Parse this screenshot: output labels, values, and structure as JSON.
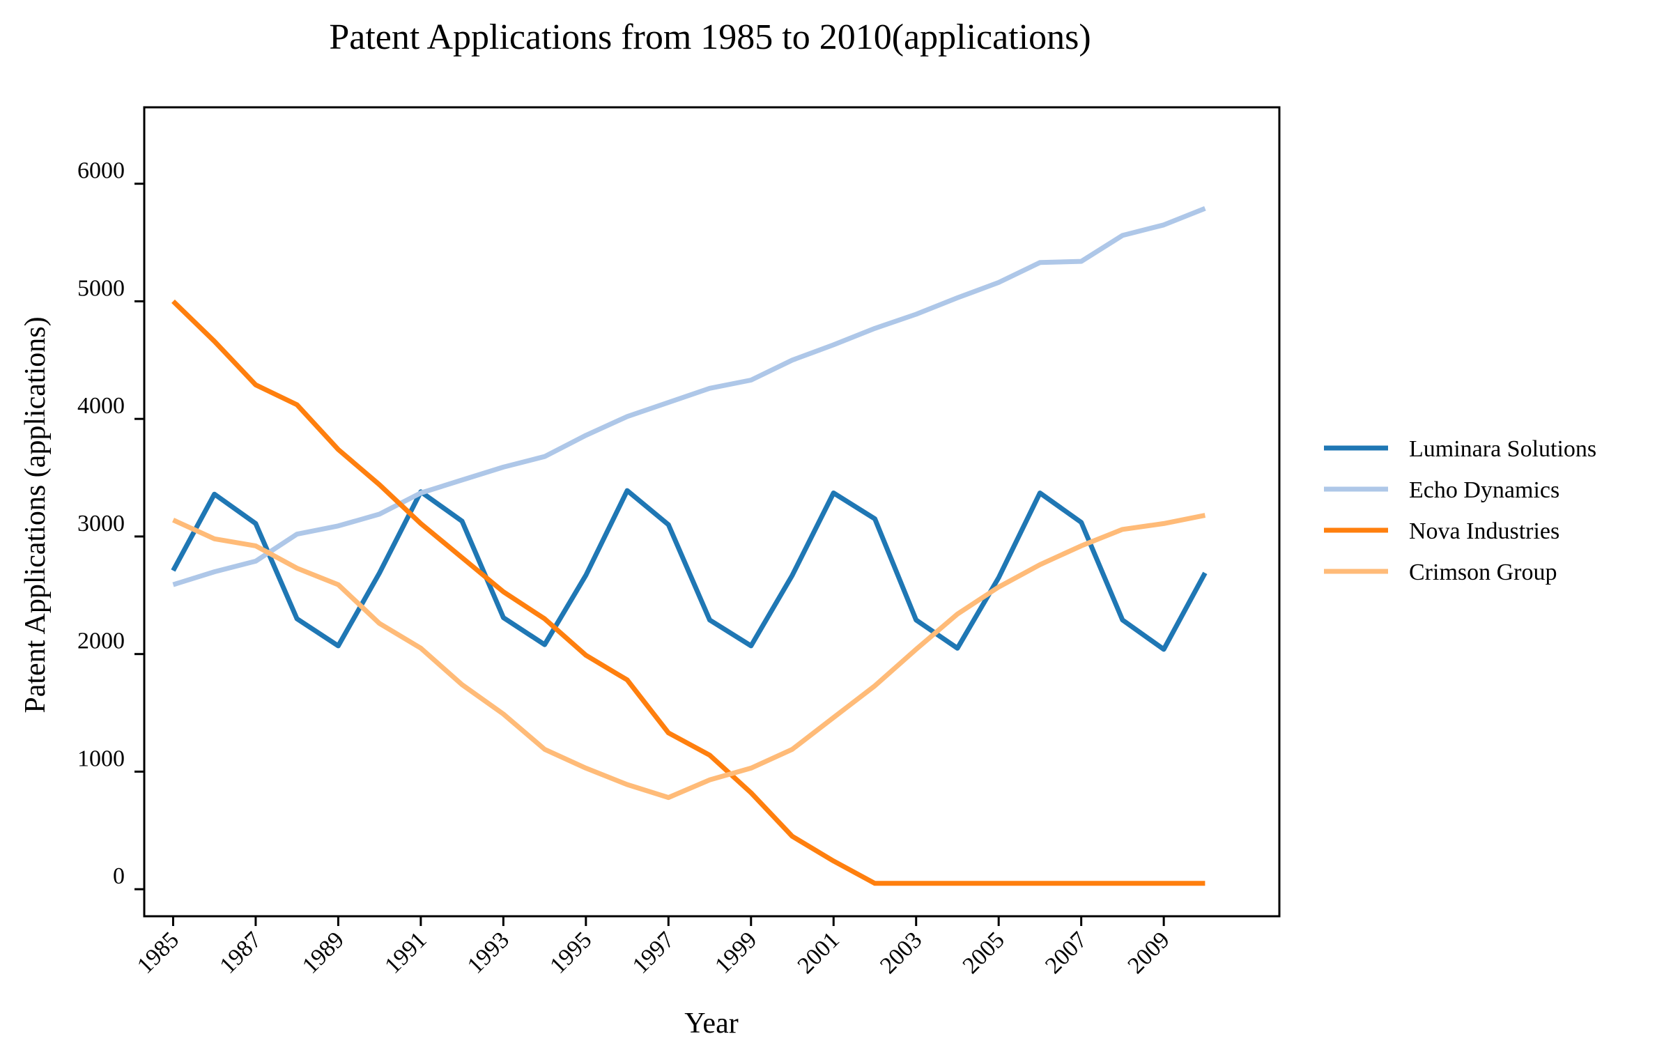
{
  "chart_data": {
    "type": "line",
    "title": "Patent Applications from 1985 to 2010(applications)",
    "xlabel": "Year",
    "ylabel": "Patent Applications (applications)",
    "x": [
      1985,
      1986,
      1987,
      1988,
      1989,
      1990,
      1991,
      1992,
      1993,
      1994,
      1995,
      1996,
      1997,
      1998,
      1999,
      2000,
      2001,
      2002,
      2003,
      2004,
      2005,
      2006,
      2007,
      2008,
      2009,
      2010
    ],
    "xticks": [
      "1985",
      "1987",
      "1989",
      "1991",
      "1993",
      "1995",
      "1997",
      "1999",
      "2001",
      "2003",
      "2005",
      "2007",
      "2009"
    ],
    "yticks": [
      "0",
      "1000",
      "2000",
      "3000",
      "4000",
      "5000",
      "6000"
    ],
    "xlim": [
      1984.3,
      2011.8
    ],
    "ylim": [
      -230,
      6650
    ],
    "grid": false,
    "legend_position": "right",
    "series": [
      {
        "name": "Luminara Solutions",
        "color": "#1f77b4",
        "values": [
          2710,
          3360,
          3110,
          2300,
          2070,
          2690,
          3380,
          3130,
          2310,
          2080,
          2670,
          3390,
          3100,
          2290,
          2070,
          2670,
          3370,
          3150,
          2290,
          2050,
          2650,
          3370,
          3120,
          2290,
          2040,
          2690
        ]
      },
      {
        "name": "Echo Dynamics",
        "color": "#aec7e8",
        "values": [
          2590,
          2700,
          2790,
          3020,
          3090,
          3190,
          3370,
          3480,
          3590,
          3680,
          3860,
          4020,
          4140,
          4260,
          4330,
          4500,
          4630,
          4770,
          4890,
          5030,
          5160,
          5330,
          5340,
          5560,
          5650,
          5790
        ]
      },
      {
        "name": "Nova Industries",
        "color": "#ff7f0e",
        "values": [
          5000,
          4660,
          4290,
          4120,
          3740,
          3440,
          3110,
          2820,
          2530,
          2300,
          1990,
          1780,
          1330,
          1140,
          820,
          450,
          240,
          50,
          50,
          50,
          50,
          50,
          50,
          50,
          50,
          50
        ]
      },
      {
        "name": "Crimson Group",
        "color": "#ffbb78",
        "values": [
          3140,
          2980,
          2920,
          2730,
          2590,
          2260,
          2050,
          1740,
          1490,
          1190,
          1030,
          890,
          780,
          930,
          1030,
          1190,
          1460,
          1730,
          2040,
          2340,
          2570,
          2760,
          2920,
          3060,
          3110,
          3180
        ]
      }
    ]
  }
}
